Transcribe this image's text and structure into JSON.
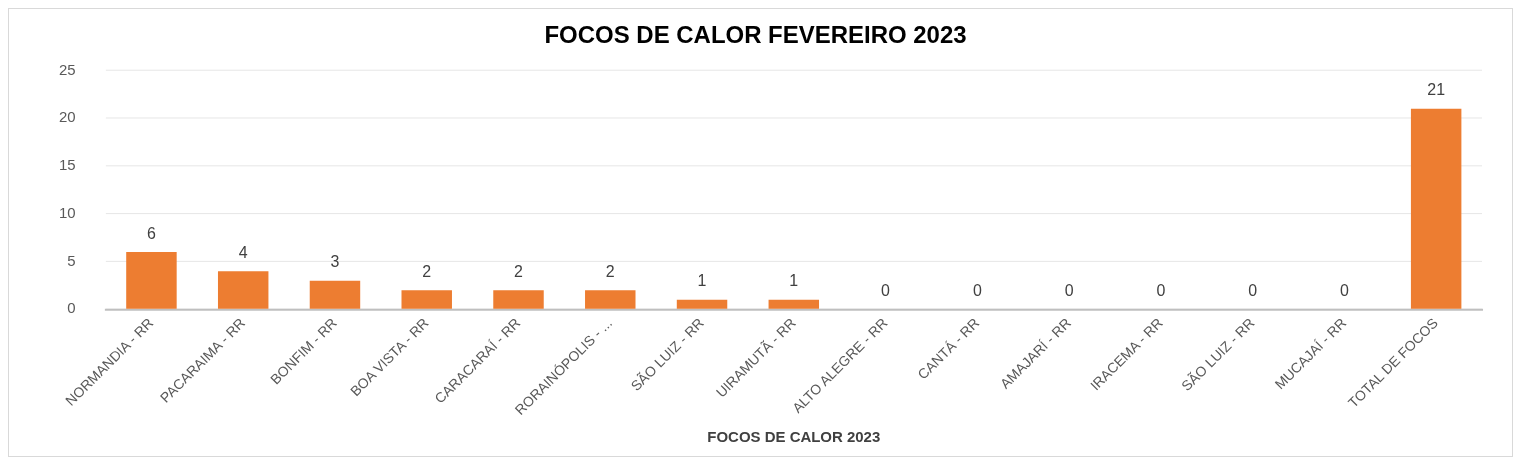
{
  "chart_data": {
    "type": "bar",
    "title": "FOCOS DE CALOR FEVEREIRO 2023",
    "xlabel": "FOCOS DE CALOR 2023",
    "categories": [
      "NORMANDIA - RR",
      "PACARAIMA - RR",
      "BONFIM - RR",
      "BOA VISTA - RR",
      "CARACARAÍ - RR",
      "RORAINÓPOLIS - ...",
      "SÃO LUIZ - RR",
      "UIRAMUTÃ - RR",
      "ALTO ALEGRE - RR",
      "CANTÁ - RR",
      "AMAJARÍ - RR",
      "IRACEMA - RR",
      "SÃO LUIZ - RR",
      "MUCAJAÍ - RR",
      "TOTAL DE FOCOS"
    ],
    "values": [
      6,
      4,
      3,
      2,
      2,
      2,
      1,
      1,
      0,
      0,
      0,
      0,
      0,
      0,
      21
    ],
    "color": "#ed7d31",
    "ylim": [
      0,
      25
    ],
    "yticks": [
      0,
      5,
      10,
      15,
      20,
      25
    ],
    "grid": "y",
    "legend": false,
    "data_labels": true
  }
}
